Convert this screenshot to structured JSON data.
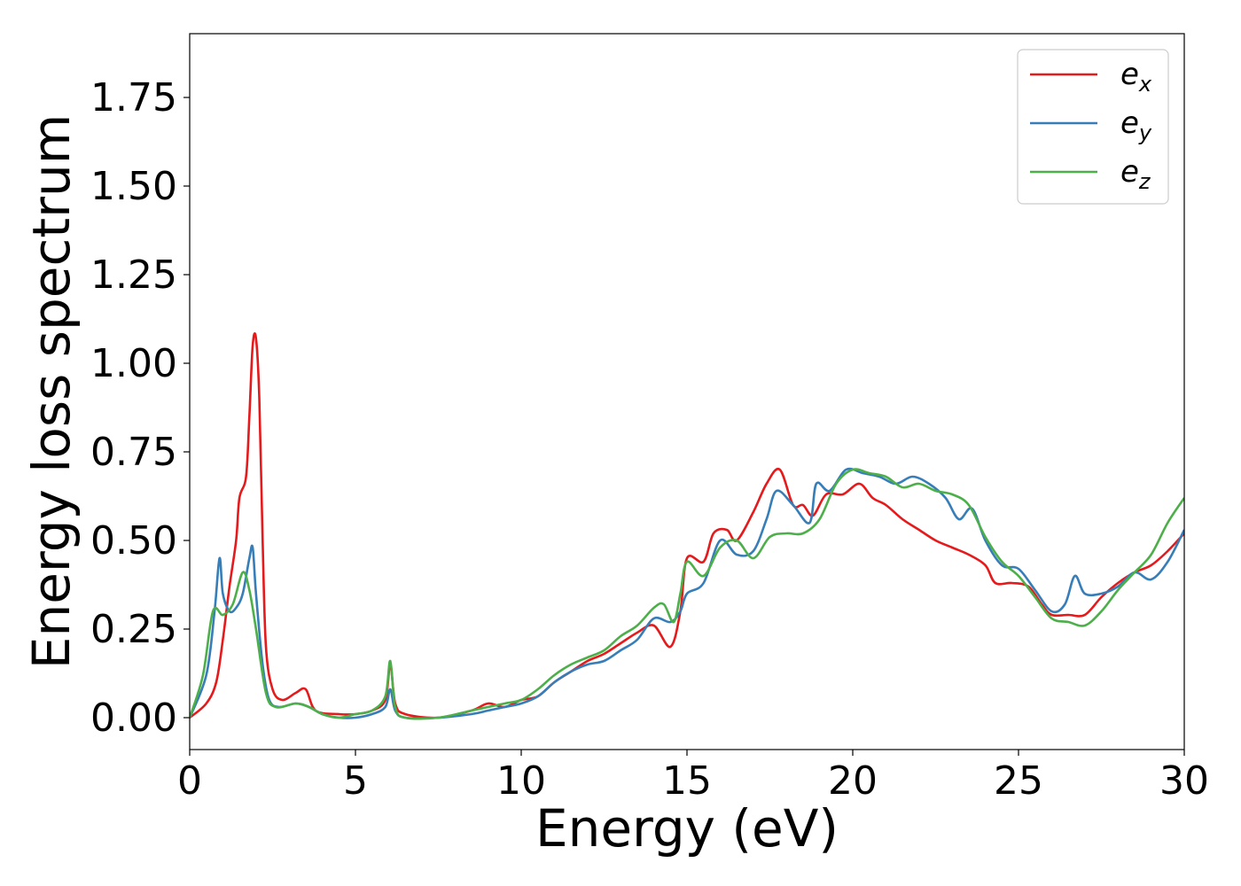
{
  "chart_data": {
    "type": "line",
    "xlabel": "Energy (eV)",
    "ylabel": "Energy loss spectrum",
    "xlim": [
      0,
      30
    ],
    "ylim": [
      -0.09,
      1.93
    ],
    "xticks": [
      0,
      5,
      10,
      15,
      20,
      25,
      30
    ],
    "xtick_labels": [
      "0",
      "5",
      "10",
      "15",
      "20",
      "25",
      "30"
    ],
    "yticks": [
      0.0,
      0.25,
      0.5,
      0.75,
      1.0,
      1.25,
      1.5,
      1.75
    ],
    "ytick_labels": [
      "0.00",
      "0.25",
      "0.50",
      "0.75",
      "1.00",
      "1.25",
      "1.50",
      "1.75"
    ],
    "grid": false,
    "legend_position": "top-right",
    "series": [
      {
        "name": "e",
        "subscript": "x",
        "color": "#e41a1c",
        "points": [
          [
            0,
            0.0
          ],
          [
            0.5,
            0.04
          ],
          [
            0.8,
            0.1
          ],
          [
            1.0,
            0.22
          ],
          [
            1.2,
            0.37
          ],
          [
            1.4,
            0.5
          ],
          [
            1.5,
            0.62
          ],
          [
            1.7,
            0.68
          ],
          [
            1.8,
            0.85
          ],
          [
            1.9,
            1.05
          ],
          [
            2.0,
            1.07
          ],
          [
            2.1,
            0.9
          ],
          [
            2.2,
            0.5
          ],
          [
            2.3,
            0.2
          ],
          [
            2.5,
            0.08
          ],
          [
            2.8,
            0.05
          ],
          [
            3.2,
            0.07
          ],
          [
            3.5,
            0.08
          ],
          [
            3.8,
            0.02
          ],
          [
            4.5,
            0.01
          ],
          [
            5.0,
            0.01
          ],
          [
            5.5,
            0.02
          ],
          [
            5.9,
            0.05
          ],
          [
            6.05,
            0.15
          ],
          [
            6.2,
            0.04
          ],
          [
            6.5,
            0.01
          ],
          [
            7.5,
            0.0
          ],
          [
            8.5,
            0.02
          ],
          [
            9.0,
            0.04
          ],
          [
            9.5,
            0.03
          ],
          [
            10.0,
            0.05
          ],
          [
            10.5,
            0.06
          ],
          [
            11.0,
            0.1
          ],
          [
            11.5,
            0.13
          ],
          [
            12.0,
            0.16
          ],
          [
            12.5,
            0.18
          ],
          [
            13.0,
            0.21
          ],
          [
            13.5,
            0.24
          ],
          [
            14.0,
            0.26
          ],
          [
            14.5,
            0.2
          ],
          [
            14.8,
            0.3
          ],
          [
            15.0,
            0.45
          ],
          [
            15.5,
            0.44
          ],
          [
            15.8,
            0.52
          ],
          [
            16.2,
            0.53
          ],
          [
            16.5,
            0.5
          ],
          [
            17.0,
            0.58
          ],
          [
            17.4,
            0.66
          ],
          [
            17.8,
            0.7
          ],
          [
            18.2,
            0.6
          ],
          [
            18.5,
            0.6
          ],
          [
            18.8,
            0.57
          ],
          [
            19.2,
            0.63
          ],
          [
            19.7,
            0.63
          ],
          [
            20.2,
            0.66
          ],
          [
            20.6,
            0.62
          ],
          [
            21.0,
            0.6
          ],
          [
            21.5,
            0.56
          ],
          [
            22.0,
            0.53
          ],
          [
            22.5,
            0.5
          ],
          [
            23.0,
            0.48
          ],
          [
            23.5,
            0.46
          ],
          [
            24.0,
            0.43
          ],
          [
            24.3,
            0.38
          ],
          [
            24.8,
            0.38
          ],
          [
            25.3,
            0.37
          ],
          [
            25.7,
            0.32
          ],
          [
            26.0,
            0.29
          ],
          [
            26.5,
            0.29
          ],
          [
            27.0,
            0.29
          ],
          [
            27.5,
            0.34
          ],
          [
            28.0,
            0.38
          ],
          [
            28.5,
            0.41
          ],
          [
            29.0,
            0.43
          ],
          [
            29.5,
            0.47
          ],
          [
            30.0,
            0.52
          ]
        ]
      },
      {
        "name": "e",
        "subscript": "y",
        "color": "#377eb8",
        "points": [
          [
            0,
            0.0
          ],
          [
            0.5,
            0.12
          ],
          [
            0.75,
            0.3
          ],
          [
            0.9,
            0.45
          ],
          [
            1.0,
            0.35
          ],
          [
            1.2,
            0.3
          ],
          [
            1.4,
            0.31
          ],
          [
            1.6,
            0.35
          ],
          [
            1.8,
            0.45
          ],
          [
            1.9,
            0.48
          ],
          [
            2.0,
            0.35
          ],
          [
            2.2,
            0.15
          ],
          [
            2.4,
            0.05
          ],
          [
            2.7,
            0.03
          ],
          [
            3.2,
            0.04
          ],
          [
            3.6,
            0.03
          ],
          [
            4.0,
            0.01
          ],
          [
            4.5,
            0.0
          ],
          [
            5.0,
            0.0
          ],
          [
            5.5,
            0.01
          ],
          [
            5.9,
            0.03
          ],
          [
            6.05,
            0.08
          ],
          [
            6.2,
            0.02
          ],
          [
            6.5,
            0.0
          ],
          [
            7.5,
            0.0
          ],
          [
            8.5,
            0.01
          ],
          [
            9.0,
            0.02
          ],
          [
            9.5,
            0.03
          ],
          [
            10.0,
            0.04
          ],
          [
            10.5,
            0.06
          ],
          [
            11.0,
            0.1
          ],
          [
            11.5,
            0.13
          ],
          [
            12.0,
            0.15
          ],
          [
            12.5,
            0.16
          ],
          [
            13.0,
            0.19
          ],
          [
            13.5,
            0.22
          ],
          [
            14.0,
            0.28
          ],
          [
            14.5,
            0.27
          ],
          [
            14.8,
            0.3
          ],
          [
            15.0,
            0.35
          ],
          [
            15.5,
            0.38
          ],
          [
            16.0,
            0.5
          ],
          [
            16.5,
            0.46
          ],
          [
            17.0,
            0.47
          ],
          [
            17.4,
            0.56
          ],
          [
            17.7,
            0.64
          ],
          [
            18.2,
            0.6
          ],
          [
            18.7,
            0.55
          ],
          [
            18.9,
            0.66
          ],
          [
            19.3,
            0.64
          ],
          [
            19.8,
            0.7
          ],
          [
            20.3,
            0.69
          ],
          [
            20.8,
            0.68
          ],
          [
            21.3,
            0.66
          ],
          [
            21.8,
            0.68
          ],
          [
            22.3,
            0.66
          ],
          [
            22.8,
            0.62
          ],
          [
            23.2,
            0.56
          ],
          [
            23.6,
            0.59
          ],
          [
            24.0,
            0.5
          ],
          [
            24.5,
            0.43
          ],
          [
            25.0,
            0.42
          ],
          [
            25.5,
            0.36
          ],
          [
            26.0,
            0.3
          ],
          [
            26.4,
            0.32
          ],
          [
            26.7,
            0.4
          ],
          [
            27.0,
            0.35
          ],
          [
            27.5,
            0.35
          ],
          [
            28.0,
            0.37
          ],
          [
            28.5,
            0.41
          ],
          [
            29.0,
            0.39
          ],
          [
            29.5,
            0.44
          ],
          [
            30.0,
            0.53
          ]
        ]
      },
      {
        "name": "e",
        "subscript": "z",
        "color": "#4daf4a",
        "points": [
          [
            0,
            0.0
          ],
          [
            0.4,
            0.12
          ],
          [
            0.7,
            0.3
          ],
          [
            1.0,
            0.29
          ],
          [
            1.3,
            0.32
          ],
          [
            1.6,
            0.41
          ],
          [
            1.8,
            0.36
          ],
          [
            2.0,
            0.25
          ],
          [
            2.3,
            0.07
          ],
          [
            2.6,
            0.03
          ],
          [
            3.2,
            0.04
          ],
          [
            3.6,
            0.03
          ],
          [
            4.0,
            0.01
          ],
          [
            4.5,
            0.0
          ],
          [
            5.0,
            0.01
          ],
          [
            5.5,
            0.02
          ],
          [
            5.9,
            0.06
          ],
          [
            6.05,
            0.16
          ],
          [
            6.2,
            0.03
          ],
          [
            6.5,
            0.0
          ],
          [
            7.5,
            0.0
          ],
          [
            8.5,
            0.02
          ],
          [
            9.0,
            0.03
          ],
          [
            9.5,
            0.04
          ],
          [
            10.0,
            0.05
          ],
          [
            10.5,
            0.08
          ],
          [
            11.0,
            0.12
          ],
          [
            11.5,
            0.15
          ],
          [
            12.0,
            0.17
          ],
          [
            12.5,
            0.19
          ],
          [
            13.0,
            0.23
          ],
          [
            13.5,
            0.26
          ],
          [
            14.0,
            0.31
          ],
          [
            14.3,
            0.32
          ],
          [
            14.6,
            0.27
          ],
          [
            14.8,
            0.35
          ],
          [
            15.0,
            0.44
          ],
          [
            15.5,
            0.4
          ],
          [
            16.0,
            0.48
          ],
          [
            16.5,
            0.5
          ],
          [
            17.0,
            0.45
          ],
          [
            17.5,
            0.51
          ],
          [
            18.0,
            0.52
          ],
          [
            18.5,
            0.52
          ],
          [
            19.0,
            0.56
          ],
          [
            19.5,
            0.66
          ],
          [
            20.0,
            0.7
          ],
          [
            20.5,
            0.69
          ],
          [
            21.0,
            0.68
          ],
          [
            21.5,
            0.65
          ],
          [
            22.0,
            0.66
          ],
          [
            22.5,
            0.64
          ],
          [
            23.0,
            0.63
          ],
          [
            23.5,
            0.6
          ],
          [
            24.0,
            0.51
          ],
          [
            24.5,
            0.44
          ],
          [
            25.0,
            0.4
          ],
          [
            25.5,
            0.34
          ],
          [
            26.0,
            0.28
          ],
          [
            26.5,
            0.27
          ],
          [
            27.0,
            0.26
          ],
          [
            27.5,
            0.3
          ],
          [
            28.0,
            0.36
          ],
          [
            28.5,
            0.41
          ],
          [
            29.0,
            0.46
          ],
          [
            29.5,
            0.55
          ],
          [
            30.0,
            0.62
          ]
        ]
      }
    ]
  }
}
